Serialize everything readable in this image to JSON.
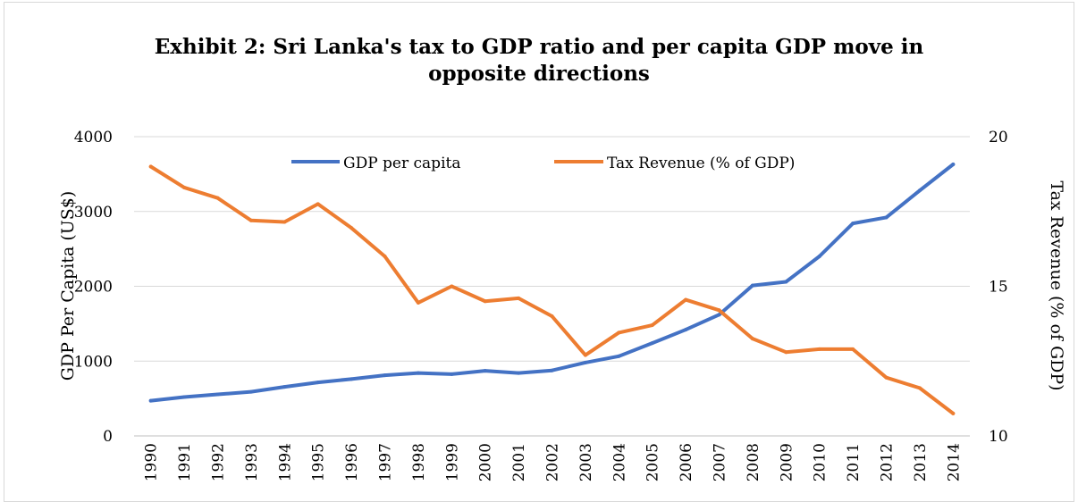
{
  "chart_data": {
    "type": "line",
    "title_line1": "Exhibit 2: Sri Lanka's tax to GDP ratio and per capita GDP move in",
    "title_line2": "opposite directions",
    "ylabel": "GDP Per Capita (US$)",
    "y2label": "Tax Revenue (% of GDP)",
    "ylim": [
      0,
      4000
    ],
    "y2lim": [
      10,
      20
    ],
    "yticks": [
      "0",
      "1000",
      "2000",
      "3000",
      "4000"
    ],
    "y2ticks": [
      "10",
      "15",
      "20"
    ],
    "grid": true,
    "legend_position": "top",
    "x": [
      "1990",
      "1991",
      "1992",
      "1993",
      "1994",
      "1995",
      "1996",
      "1997",
      "1998",
      "1999",
      "2000",
      "2001",
      "2002",
      "2003",
      "2004",
      "2005",
      "2006",
      "2007",
      "2008",
      "2009",
      "2010",
      "2011",
      "2012",
      "2013",
      "2014"
    ],
    "series": [
      {
        "name": "GDP per capita",
        "axis": "left",
        "color": "#4472c4",
        "values": [
          470,
          520,
          555,
          590,
          655,
          715,
          760,
          810,
          840,
          825,
          870,
          840,
          875,
          980,
          1065,
          1240,
          1420,
          1620,
          2010,
          2060,
          2400,
          2840,
          2920,
          3280,
          3630
        ]
      },
      {
        "name": "Tax Revenue (% of GDP)",
        "axis": "right",
        "color": "#ed7d31",
        "values": [
          19.0,
          18.3,
          17.95,
          17.2,
          17.15,
          17.75,
          16.95,
          16.0,
          14.45,
          15.0,
          14.5,
          14.6,
          14.0,
          12.7,
          13.45,
          13.7,
          14.55,
          14.2,
          13.25,
          12.8,
          12.9,
          12.9,
          11.95,
          11.6,
          10.75
        ]
      }
    ]
  }
}
